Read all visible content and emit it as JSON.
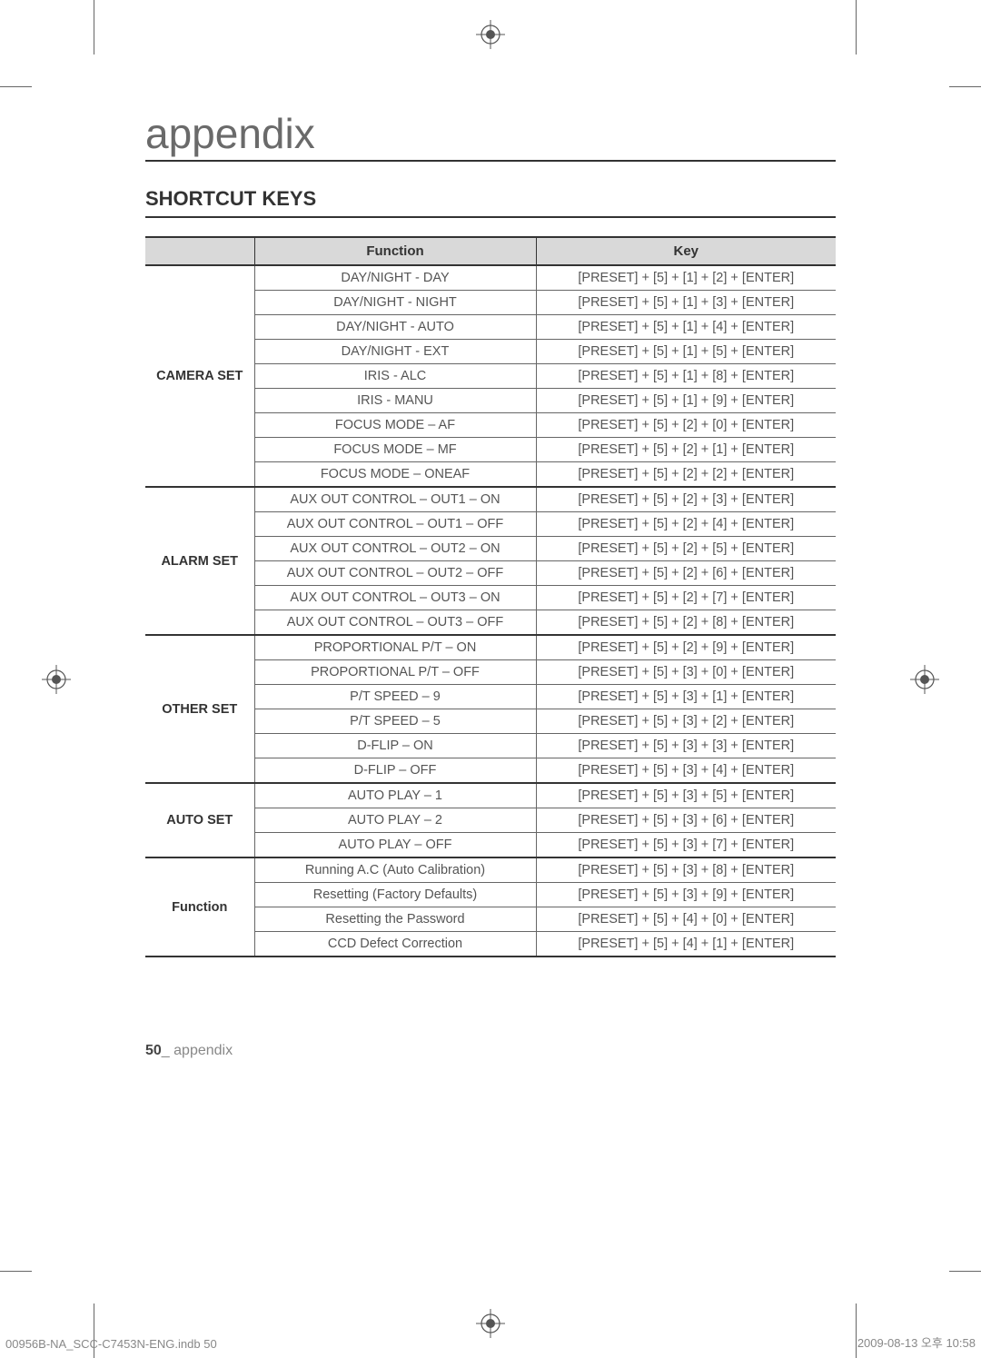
{
  "chapter_title": "appendix",
  "section_title": "SHORTCUT KEYS",
  "table": {
    "headers": [
      "",
      "Function",
      "Key"
    ],
    "groups": [
      {
        "category": "CAMERA SET",
        "rows": [
          {
            "function": "DAY/NIGHT - DAY",
            "key": "[PRESET] + [5] + [1] + [2] + [ENTER]"
          },
          {
            "function": "DAY/NIGHT - NIGHT",
            "key": "[PRESET] + [5] + [1] + [3] + [ENTER]"
          },
          {
            "function": "DAY/NIGHT - AUTO",
            "key": "[PRESET] + [5] + [1] + [4] + [ENTER]"
          },
          {
            "function": "DAY/NIGHT - EXT",
            "key": "[PRESET] + [5] + [1] + [5] + [ENTER]"
          },
          {
            "function": "IRIS - ALC",
            "key": "[PRESET] + [5] + [1] + [8] + [ENTER]"
          },
          {
            "function": "IRIS - MANU",
            "key": "[PRESET] + [5] + [1] + [9] + [ENTER]"
          },
          {
            "function": "FOCUS MODE – AF",
            "key": "[PRESET] + [5] + [2] + [0] + [ENTER]"
          },
          {
            "function": "FOCUS MODE – MF",
            "key": "[PRESET] + [5] + [2] + [1] + [ENTER]"
          },
          {
            "function": "FOCUS MODE – ONEAF",
            "key": "[PRESET] + [5] + [2] + [2] + [ENTER]"
          }
        ]
      },
      {
        "category": "ALARM SET",
        "rows": [
          {
            "function": "AUX OUT CONTROL – OUT1 – ON",
            "key": "[PRESET] + [5] + [2] + [3] + [ENTER]"
          },
          {
            "function": "AUX OUT CONTROL – OUT1 – OFF",
            "key": "[PRESET] + [5] + [2] + [4] + [ENTER]"
          },
          {
            "function": "AUX OUT CONTROL – OUT2 – ON",
            "key": "[PRESET] + [5] + [2] + [5] + [ENTER]"
          },
          {
            "function": "AUX OUT CONTROL – OUT2 – OFF",
            "key": "[PRESET] + [5] + [2] + [6] + [ENTER]"
          },
          {
            "function": "AUX OUT CONTROL – OUT3 – ON",
            "key": "[PRESET] + [5] + [2] + [7] + [ENTER]"
          },
          {
            "function": "AUX OUT CONTROL – OUT3 – OFF",
            "key": "[PRESET] + [5] + [2] + [8] + [ENTER]"
          }
        ]
      },
      {
        "category": "OTHER SET",
        "rows": [
          {
            "function": "PROPORTIONAL P/T – ON",
            "key": "[PRESET] + [5] + [2] + [9] + [ENTER]"
          },
          {
            "function": "PROPORTIONAL P/T – OFF",
            "key": "[PRESET] + [5] + [3] + [0] + [ENTER]"
          },
          {
            "function": "P/T SPEED – 9",
            "key": "[PRESET] + [5] + [3] + [1] + [ENTER]"
          },
          {
            "function": "P/T SPEED – 5",
            "key": "[PRESET] + [5] + [3] + [2] + [ENTER]"
          },
          {
            "function": "D-FLIP – ON",
            "key": "[PRESET] + [5] + [3] + [3] + [ENTER]"
          },
          {
            "function": "D-FLIP – OFF",
            "key": "[PRESET] + [5] + [3] + [4] + [ENTER]"
          }
        ]
      },
      {
        "category": "AUTO SET",
        "rows": [
          {
            "function": "AUTO PLAY – 1",
            "key": "[PRESET] + [5] + [3] + [5] + [ENTER]"
          },
          {
            "function": "AUTO PLAY – 2",
            "key": "[PRESET] + [5] + [3] + [6] + [ENTER]"
          },
          {
            "function": "AUTO PLAY – OFF",
            "key": "[PRESET] + [5] + [3] + [7] + [ENTER]"
          }
        ]
      },
      {
        "category": "Function",
        "rows": [
          {
            "function": "Running A.C (Auto Calibration)",
            "key": "[PRESET] + [5] + [3] + [8] + [ENTER]"
          },
          {
            "function": "Resetting (Factory Defaults)",
            "key": "[PRESET] + [5] + [3] + [9] + [ENTER]"
          },
          {
            "function": "Resetting the Password",
            "key": "[PRESET] + [5] + [4] + [0] + [ENTER]"
          },
          {
            "function": "CCD Defect Correction",
            "key": "[PRESET] + [5] + [4] + [1] + [ENTER]"
          }
        ]
      }
    ]
  },
  "footer": {
    "page_num": "50",
    "page_label": "_ appendix"
  },
  "meta": {
    "left": "00956B-NA_SCC-C7453N-ENG.indb   50",
    "right": "2009-08-13   오후 10:58"
  }
}
